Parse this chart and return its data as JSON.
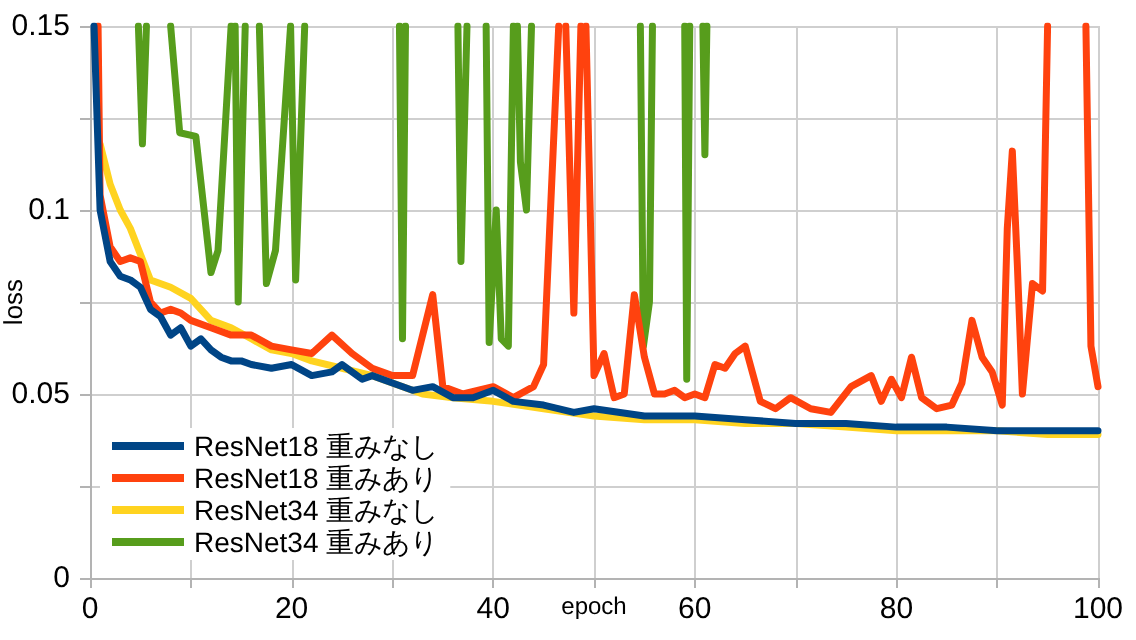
{
  "chart_data": {
    "type": "line",
    "xlabel": "epoch",
    "ylabel": "loss",
    "xlim": [
      0,
      100
    ],
    "ylim": [
      0,
      0.15
    ],
    "xticks": [
      0,
      {
        "value": 10,
        "label": null
      },
      20,
      {
        "value": 30,
        "label": null
      },
      40,
      {
        "value": 50,
        "label": null
      },
      60,
      {
        "value": 70,
        "label": null
      },
      80,
      {
        "value": 90,
        "label": null
      },
      100
    ],
    "yticks": [
      0,
      {
        "value": 0.025,
        "label": null
      },
      0.05,
      {
        "value": 0.075,
        "label": null
      },
      0.1,
      {
        "value": 0.125,
        "label": null
      },
      0.15
    ],
    "grid": true,
    "legend": "bottom left",
    "marker": "none",
    "line_style": "solid",
    "series": [
      {
        "name": "ResNet18 重みなし",
        "color": "#004586",
        "x": [
          0.4,
          1,
          2,
          3,
          4,
          5,
          6,
          7,
          8,
          9,
          10,
          11,
          12,
          13,
          14,
          15,
          16,
          18,
          20,
          22,
          24,
          25,
          27,
          28,
          30,
          32,
          34,
          36,
          38,
          40,
          42,
          45,
          48,
          50,
          55,
          60,
          65,
          70,
          75,
          80,
          85,
          90,
          95,
          100
        ],
        "values": [
          0.15,
          0.1,
          0.086,
          0.082,
          0.081,
          0.079,
          0.073,
          0.071,
          0.066,
          0.068,
          0.063,
          0.065,
          0.062,
          0.06,
          0.059,
          0.059,
          0.058,
          0.057,
          0.058,
          0.055,
          0.056,
          0.058,
          0.054,
          0.055,
          0.053,
          0.051,
          0.052,
          0.049,
          0.049,
          0.051,
          0.048,
          0.047,
          0.045,
          0.046,
          0.044,
          0.044,
          0.043,
          0.042,
          0.042,
          0.041,
          0.041,
          0.04,
          0.04,
          0.04
        ]
      },
      {
        "name": "ResNet18 重みあり",
        "color": "#ff420e",
        "x": [
          0.8,
          1,
          2,
          3,
          4,
          5,
          6,
          7,
          8,
          9,
          10,
          12,
          14,
          16,
          18,
          20,
          22,
          24,
          26,
          28,
          30,
          32,
          34,
          35,
          37,
          40,
          42,
          44,
          45,
          46.5,
          46.8,
          47.2,
          48,
          48.7,
          48.9,
          49.2,
          50,
          51,
          52,
          53,
          54,
          55,
          56,
          57,
          58,
          59,
          60,
          61,
          62,
          63,
          64,
          65,
          66.5,
          68,
          69.5,
          71.5,
          73.5,
          75.5,
          77.5,
          78.5,
          79.5,
          80.5,
          81.5,
          82.5,
          84,
          85.5,
          86.5,
          87.5,
          88.5,
          89.5,
          90.5,
          91,
          91.5,
          92,
          92.5,
          93.5,
          94.5,
          95,
          96,
          98.8,
          99.3,
          100
        ],
        "values": [
          0.15,
          0.104,
          0.09,
          0.086,
          0.087,
          0.086,
          0.075,
          0.072,
          0.073,
          0.072,
          0.07,
          0.068,
          0.066,
          0.066,
          0.063,
          0.062,
          0.061,
          0.066,
          0.061,
          0.057,
          0.055,
          0.055,
          0.077,
          0.052,
          0.05,
          0.052,
          0.049,
          0.052,
          0.058,
          0.15,
          null,
          0.15,
          0.072,
          0.15,
          null,
          0.15,
          0.055,
          0.061,
          0.049,
          0.05,
          0.077,
          0.06,
          0.05,
          0.05,
          0.051,
          0.049,
          0.05,
          0.049,
          0.058,
          0.057,
          0.061,
          0.063,
          0.048,
          0.046,
          0.049,
          0.046,
          0.045,
          0.052,
          0.055,
          0.048,
          0.054,
          0.049,
          0.06,
          0.049,
          0.046,
          0.047,
          0.053,
          0.07,
          0.06,
          0.056,
          0.047,
          0.095,
          0.116,
          0.085,
          0.05,
          0.08,
          0.078,
          0.15,
          null,
          0.15,
          0.063,
          0.052
        ]
      },
      {
        "name": "ResNet34 重みなし",
        "color": "#ffd320",
        "x": [
          1,
          2,
          3,
          4,
          5,
          6,
          8,
          10,
          12,
          14,
          16,
          18,
          20,
          22,
          25,
          28,
          30,
          33,
          36,
          40,
          45,
          50,
          55,
          60,
          65,
          70,
          75,
          80,
          85,
          90,
          95,
          100
        ],
        "values": [
          0.118,
          0.107,
          0.1,
          0.095,
          0.088,
          0.081,
          0.079,
          0.076,
          0.07,
          0.068,
          0.065,
          0.062,
          0.061,
          0.059,
          0.057,
          0.055,
          0.053,
          0.05,
          0.049,
          0.048,
          0.046,
          0.044,
          0.043,
          0.043,
          0.042,
          0.042,
          0.041,
          0.04,
          0.04,
          0.04,
          0.039,
          0.039
        ]
      },
      {
        "name": "ResNet34 重みあり",
        "color": "#579d1c",
        "x": [
          4.8,
          5.2,
          5.6,
          6.5,
          8,
          8.9,
          10.5,
          12,
          12.7,
          14,
          14.2,
          14.4,
          14.7,
          15.4,
          16,
          16.8,
          17.5,
          18.4,
          19.9,
          20.4,
          21.3,
          25,
          30.7,
          31,
          31.3,
          34,
          36.5,
          36.8,
          37.4,
          38.5,
          39.3,
          39.6,
          40.3,
          40.8,
          41.5,
          42,
          42.2,
          42.4,
          42.7,
          43.3,
          43.8,
          49,
          54.6,
          54.9,
          55.5,
          55.8,
          57,
          59,
          59.2,
          59.5,
          60.5,
          60.8,
          61,
          61.2
        ],
        "values": [
          0.15,
          0.118,
          0.15,
          null,
          0.15,
          0.121,
          0.12,
          0.083,
          0.089,
          0.15,
          null,
          0.15,
          0.075,
          0.15,
          null,
          0.15,
          0.08,
          0.089,
          0.15,
          0.081,
          0.15,
          null,
          0.15,
          0.065,
          0.15,
          null,
          0.15,
          0.086,
          0.15,
          null,
          0.15,
          0.064,
          0.1,
          0.065,
          0.063,
          0.15,
          null,
          0.15,
          0.113,
          0.1,
          0.15,
          null,
          0.15,
          0.063,
          0.075,
          0.15,
          null,
          0.15,
          0.054,
          0.15,
          null,
          0.15,
          0.115,
          0.15
        ]
      }
    ]
  }
}
